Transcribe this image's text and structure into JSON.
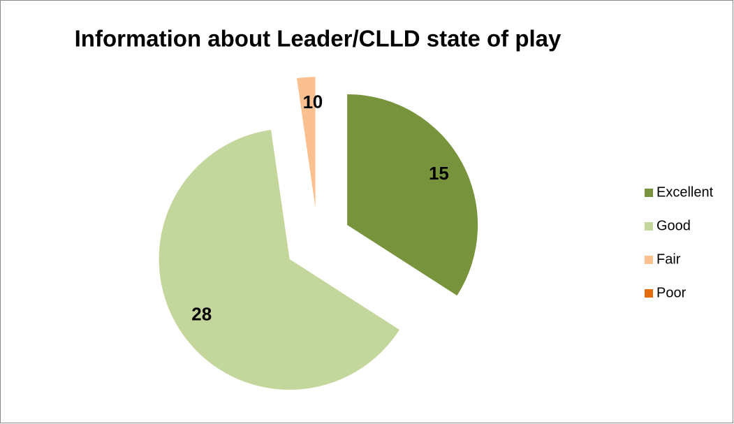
{
  "chart_data": {
    "type": "pie",
    "title": "Information about Leader/CLLD state of play",
    "categories": [
      "Excellent",
      "Good",
      "Fair",
      "Poor"
    ],
    "values": [
      15,
      28,
      1,
      0
    ],
    "colors": [
      "#77933c",
      "#c3d69b",
      "#fac090",
      "#e36c09"
    ],
    "legend": "right"
  }
}
